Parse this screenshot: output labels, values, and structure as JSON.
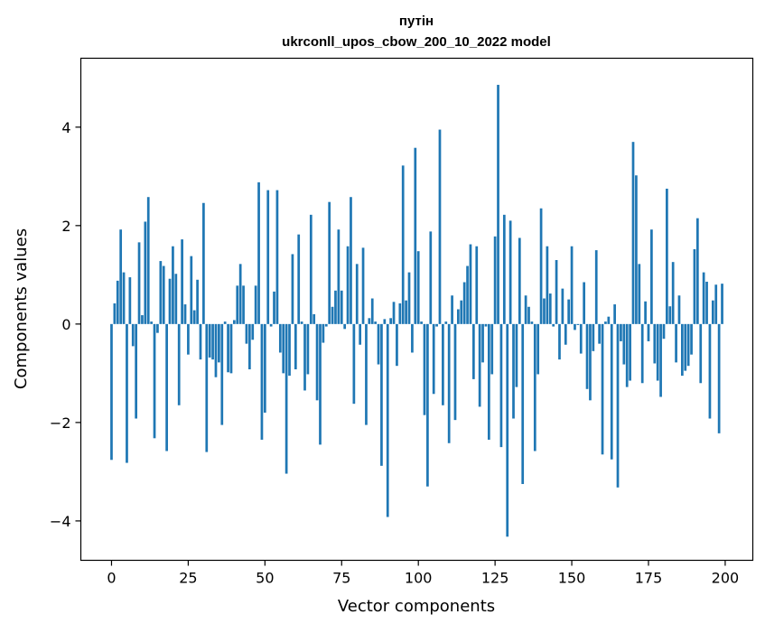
{
  "chart_data": {
    "type": "bar",
    "title_line1": "путін",
    "title_line2": "ukrconll_upos_cbow_200_10_2022 model",
    "xlabel": "Vector components",
    "ylabel": "Components values",
    "xlim": [
      -10,
      209
    ],
    "ylim": [
      -4.8,
      5.4
    ],
    "x_ticks": [
      0,
      25,
      50,
      75,
      100,
      125,
      150,
      175,
      200
    ],
    "x_tick_labels": [
      "0",
      "25",
      "50",
      "75",
      "100",
      "125",
      "150",
      "175",
      "200"
    ],
    "y_ticks": [
      -4,
      -2,
      0,
      2,
      4
    ],
    "y_tick_labels": [
      "−4",
      "−2",
      "0",
      "2",
      "4"
    ],
    "bar_color": "#1f77b4",
    "grid": false,
    "values": [
      -2.76,
      0.42,
      0.88,
      1.92,
      1.05,
      -2.82,
      0.95,
      -0.45,
      -1.92,
      1.66,
      0.18,
      2.08,
      2.58,
      0.05,
      -2.32,
      -0.18,
      1.28,
      1.18,
      -2.58,
      0.92,
      1.58,
      1.02,
      -1.65,
      1.72,
      0.4,
      -0.62,
      1.38,
      0.28,
      0.9,
      -0.72,
      2.46,
      -2.6,
      -0.68,
      -0.72,
      -1.08,
      -0.78,
      -2.05,
      0.05,
      -0.98,
      -1.0,
      0.08,
      0.78,
      1.22,
      0.78,
      -0.4,
      -0.92,
      -0.32,
      0.78,
      2.88,
      -2.35,
      -1.8,
      2.72,
      -0.05,
      0.66,
      2.72,
      -0.58,
      -1.0,
      -3.04,
      -1.05,
      1.42,
      -0.92,
      1.82,
      0.05,
      -1.35,
      -1.02,
      2.22,
      0.2,
      -1.55,
      -2.45,
      -0.38,
      -0.05,
      2.48,
      0.35,
      0.68,
      1.92,
      0.68,
      -0.1,
      1.58,
      2.58,
      -1.62,
      1.22,
      -0.42,
      1.55,
      -2.05,
      0.12,
      0.52,
      0.05,
      -0.82,
      -2.88,
      0.1,
      -3.92,
      0.12,
      0.45,
      -0.85,
      0.42,
      3.22,
      0.48,
      1.05,
      -0.58,
      3.58,
      1.48,
      0.05,
      -1.85,
      -3.3,
      1.88,
      -1.42,
      -0.05,
      3.95,
      -1.65,
      0.05,
      -2.42,
      0.58,
      -1.95,
      0.3,
      0.48,
      0.85,
      1.18,
      1.62,
      -1.12,
      1.58,
      -1.68,
      -0.78,
      -0.05,
      -2.35,
      -1.02,
      1.78,
      4.86,
      -2.5,
      2.22,
      -4.32,
      2.1,
      -1.92,
      -1.28,
      1.75,
      -3.25,
      0.58,
      0.35,
      0.05,
      -2.58,
      -1.02,
      2.35,
      0.52,
      1.58,
      0.62,
      -0.05,
      1.3,
      -0.72,
      0.72,
      -0.42,
      0.5,
      1.58,
      -0.12,
      -0.02,
      -0.6,
      0.85,
      -1.32,
      -1.55,
      -0.55,
      1.5,
      -0.4,
      -2.65,
      0.05,
      0.15,
      -2.75,
      0.4,
      -3.32,
      -0.35,
      -0.82,
      -1.28,
      -1.15,
      3.7,
      3.02,
      1.22,
      -1.2,
      0.46,
      -0.35,
      1.92,
      -0.8,
      -1.15,
      -1.48,
      -0.3,
      2.75,
      0.36,
      1.26,
      -0.78,
      0.58,
      -1.05,
      -0.95,
      -0.85,
      -0.62,
      1.52,
      2.15,
      -1.2,
      1.05,
      0.86,
      -1.92,
      0.48,
      0.8,
      -2.22,
      0.82
    ]
  }
}
